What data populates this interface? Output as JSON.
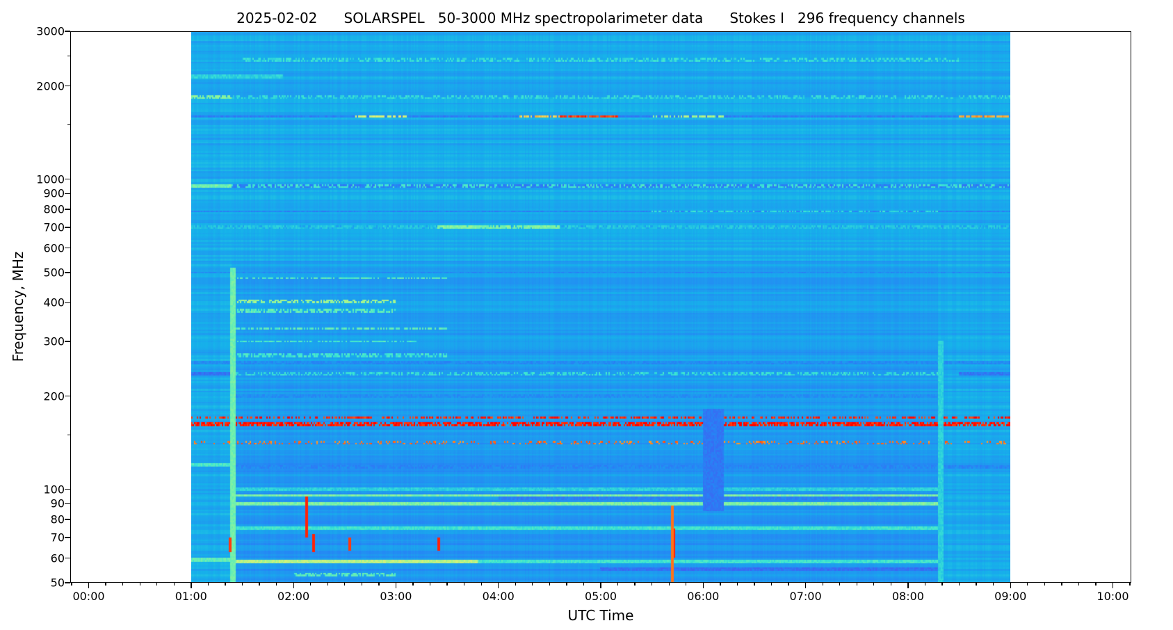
{
  "chart_data": {
    "type": "heatmap",
    "title": "2025-02-02      SOLARSPEL   50-3000 MHz spectropolarimeter data      Stokes I   296 frequency channels",
    "xlabel": "UTC Time",
    "ylabel": "Frequency, MHz",
    "xlim_hours": [
      -0.18,
      10.18
    ],
    "ylim": [
      50,
      3000
    ],
    "yscale": "log",
    "data_time_range_hours": [
      1.0,
      9.0
    ],
    "channels": 296,
    "x_ticks": [
      {
        "h": 0,
        "label": "00:00"
      },
      {
        "h": 1,
        "label": "01:00"
      },
      {
        "h": 2,
        "label": "02:00"
      },
      {
        "h": 3,
        "label": "03:00"
      },
      {
        "h": 4,
        "label": "04:00"
      },
      {
        "h": 5,
        "label": "05:00"
      },
      {
        "h": 6,
        "label": "06:00"
      },
      {
        "h": 7,
        "label": "07:00"
      },
      {
        "h": 8,
        "label": "08:00"
      },
      {
        "h": 9,
        "label": "09:00"
      },
      {
        "h": 10,
        "label": "10:00"
      }
    ],
    "y_ticks": [
      {
        "f": 50,
        "label": "50"
      },
      {
        "f": 60,
        "label": "60"
      },
      {
        "f": 70,
        "label": "70"
      },
      {
        "f": 80,
        "label": "80"
      },
      {
        "f": 90,
        "label": "90"
      },
      {
        "f": 100,
        "label": "100"
      },
      {
        "f": 200,
        "label": "200"
      },
      {
        "f": 300,
        "label": "300"
      },
      {
        "f": 400,
        "label": "400"
      },
      {
        "f": 500,
        "label": "500"
      },
      {
        "f": 600,
        "label": "600"
      },
      {
        "f": 700,
        "label": "700"
      },
      {
        "f": 800,
        "label": "800"
      },
      {
        "f": 900,
        "label": "900"
      },
      {
        "f": 1000,
        "label": "1000"
      },
      {
        "f": 2000,
        "label": "2000"
      },
      {
        "f": 3000,
        "label": "3000"
      }
    ],
    "y_minor_ticks": [
      150,
      1500,
      2500
    ],
    "colormap": [
      "#3a1fe6",
      "#4b52f0",
      "#2685f5",
      "#16b2ea",
      "#3de6d2",
      "#8ff598",
      "#eef06e",
      "#ff9020",
      "#ff0000"
    ],
    "base_level": 0.35,
    "bands": [
      {
        "f": 2450,
        "t": [
          1.5,
          8.5
        ],
        "level": 0.48,
        "sparse": 0.5
      },
      {
        "f": 2150,
        "t": [
          1.0,
          1.9
        ],
        "level": 0.45,
        "sparse": 0
      },
      {
        "f": 1850,
        "t": [
          1.0,
          1.4
        ],
        "level": 0.6,
        "sparse": 0.2
      },
      {
        "f": 1850,
        "t": [
          1.4,
          9.0
        ],
        "level": 0.47,
        "sparse": 0.5
      },
      {
        "f": 1600,
        "t": [
          1.0,
          9.0
        ],
        "level": 0.24,
        "sparse": 0
      },
      {
        "f": 1600,
        "t": [
          2.6,
          3.1
        ],
        "level": 0.72,
        "sparse": 0.3
      },
      {
        "f": 1600,
        "t": [
          4.2,
          4.6
        ],
        "level": 0.8,
        "sparse": 0.2
      },
      {
        "f": 1600,
        "t": [
          4.6,
          5.2
        ],
        "level": 0.95,
        "sparse": 0.1
      },
      {
        "f": 1600,
        "t": [
          5.5,
          6.2
        ],
        "level": 0.66,
        "sparse": 0.3
      },
      {
        "f": 1600,
        "t": [
          8.5,
          9.0
        ],
        "level": 0.85,
        "sparse": 0.1
      },
      {
        "f": 950,
        "t": [
          1.0,
          1.4
        ],
        "level": 0.58,
        "sparse": 0
      },
      {
        "f": 950,
        "t": [
          1.4,
          9.0
        ],
        "level": 0.24,
        "sparse": 0
      },
      {
        "f": 955,
        "t": [
          1.4,
          9.0
        ],
        "level": 0.5,
        "sparse": 0.6
      },
      {
        "f": 790,
        "t": [
          1.0,
          9.0
        ],
        "level": 0.25,
        "sparse": 0
      },
      {
        "f": 790,
        "t": [
          5.5,
          8.3
        ],
        "level": 0.48,
        "sparse": 0.5
      },
      {
        "f": 700,
        "t": [
          1.0,
          9.0
        ],
        "level": 0.42,
        "sparse": 0.2
      },
      {
        "f": 700,
        "t": [
          3.4,
          4.6
        ],
        "level": 0.6,
        "sparse": 0.1
      },
      {
        "f": 500,
        "t": [
          1.0,
          9.0
        ],
        "level": 0.27,
        "sparse": 0
      },
      {
        "f": 480,
        "t": [
          1.4,
          3.5
        ],
        "level": 0.55,
        "sparse": 0.4
      },
      {
        "f": 405,
        "t": [
          1.4,
          3.0
        ],
        "level": 0.64,
        "sparse": 0.4
      },
      {
        "f": 375,
        "t": [
          1.4,
          3.0
        ],
        "level": 0.55,
        "sparse": 0.4
      },
      {
        "f": 330,
        "t": [
          1.4,
          3.5
        ],
        "level": 0.55,
        "sparse": 0.3
      },
      {
        "f": 300,
        "t": [
          1.4,
          3.2
        ],
        "level": 0.52,
        "sparse": 0.3
      },
      {
        "f": 270,
        "t": [
          1.4,
          3.5
        ],
        "level": 0.5,
        "sparse": 0.4
      },
      {
        "f": 255,
        "t": [
          1.0,
          9.0
        ],
        "level": 0.27,
        "sparse": 0
      },
      {
        "f": 235,
        "t": [
          1.0,
          1.4
        ],
        "level": 0.2,
        "sparse": 0
      },
      {
        "f": 235,
        "t": [
          8.5,
          9.0
        ],
        "level": 0.22,
        "sparse": 0
      },
      {
        "f": 235,
        "t": [
          1.4,
          8.3
        ],
        "level": 0.48,
        "sparse": 0.5
      },
      {
        "f": 200,
        "t": [
          1.4,
          8.3
        ],
        "level": 0.28,
        "sparse": 0
      },
      {
        "f": 170,
        "t": [
          1.0,
          9.0
        ],
        "level": 0.97,
        "sparse": 0.45
      },
      {
        "f": 162,
        "t": [
          1.0,
          9.0
        ],
        "level": 0.98,
        "sparse": 0.25
      },
      {
        "f": 141,
        "t": [
          1.0,
          9.0
        ],
        "level": 0.9,
        "sparse": 0.75
      },
      {
        "f": 120,
        "t": [
          1.0,
          1.4
        ],
        "level": 0.52,
        "sparse": 0
      },
      {
        "f": 118,
        "t": [
          1.4,
          9.0
        ],
        "level": 0.26,
        "sparse": 0
      },
      {
        "f": 100,
        "t": [
          1.4,
          8.3
        ],
        "level": 0.45,
        "sparse": 0
      },
      {
        "f": 95,
        "t": [
          1.4,
          8.3
        ],
        "level": 0.6,
        "sparse": 0
      },
      {
        "f": 93,
        "t": [
          4.0,
          8.3
        ],
        "level": 0.24,
        "sparse": 0
      },
      {
        "f": 89,
        "t": [
          1.4,
          8.3
        ],
        "level": 0.6,
        "sparse": 0
      },
      {
        "f": 75,
        "t": [
          1.4,
          8.3
        ],
        "level": 0.5,
        "sparse": 0
      },
      {
        "f": 59,
        "t": [
          1.0,
          1.4
        ],
        "level": 0.55,
        "sparse": 0
      },
      {
        "f": 58,
        "t": [
          1.4,
          3.8
        ],
        "level": 0.68,
        "sparse": 0
      },
      {
        "f": 58,
        "t": [
          3.8,
          8.3
        ],
        "level": 0.5,
        "sparse": 0
      },
      {
        "f": 55,
        "t": [
          5.0,
          8.3
        ],
        "level": 0.2,
        "sparse": 0
      },
      {
        "f": 53,
        "t": [
          2.0,
          3.0
        ],
        "level": 0.55,
        "sparse": 0.4
      }
    ],
    "regions": [
      {
        "f": [
          85,
          180
        ],
        "t": [
          6.0,
          6.2
        ],
        "level": 0.22
      },
      {
        "f": [
          50,
          520
        ],
        "t": [
          1.38,
          1.44
        ],
        "level": 0.58
      },
      {
        "f": [
          50,
          300
        ],
        "t": [
          8.3,
          8.35
        ],
        "level": 0.45
      }
    ],
    "spikes": [
      {
        "t": 2.13,
        "f": [
          70,
          95
        ],
        "level": 0.97
      },
      {
        "t": 2.2,
        "f": [
          62,
          72
        ],
        "level": 0.97
      },
      {
        "t": 2.55,
        "f": [
          63,
          70
        ],
        "level": 0.95
      },
      {
        "t": 3.42,
        "f": [
          63,
          70
        ],
        "level": 0.97
      },
      {
        "t": 1.38,
        "f": [
          62,
          70
        ],
        "level": 0.95
      },
      {
        "t": 5.7,
        "f": [
          50,
          88
        ],
        "level": 0.9
      },
      {
        "t": 5.72,
        "f": [
          60,
          75
        ],
        "level": 0.97
      }
    ]
  }
}
